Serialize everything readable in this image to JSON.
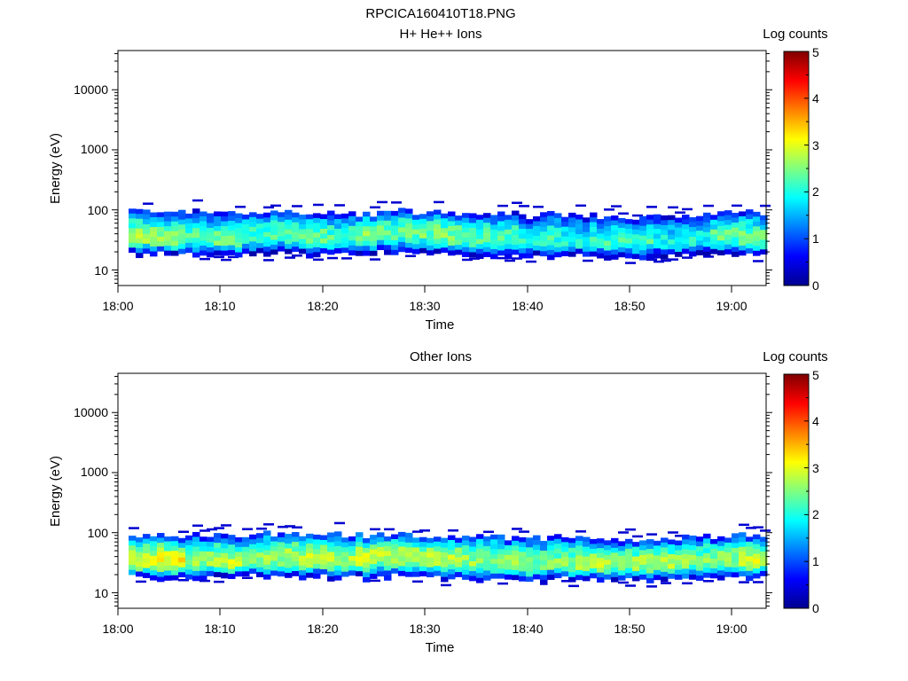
{
  "title": "RPCICA160410T18.PNG",
  "chart_data": [
    {
      "type": "heatmap",
      "title": "H+ He++ Ions",
      "xlabel": "Time",
      "ylabel": "Energy (eV)",
      "x_ticks": [
        "18:00",
        "18:10",
        "18:20",
        "18:30",
        "18:40",
        "18:50",
        "19:00"
      ],
      "x_range": [
        "18:00",
        "19:03"
      ],
      "y_scale": "log",
      "y_ticks": [
        "10",
        "100",
        "1000",
        "10000"
      ],
      "y_range": [
        5.5,
        45000
      ],
      "band": {
        "peak_energy": [
          33,
          30,
          33,
          30,
          36,
          40,
          36,
          33,
          36,
          42,
          40,
          36,
          33,
          33,
          30,
          30,
          28,
          28,
          30,
          30,
          33,
          36,
          33
        ],
        "upper_edge": [
          92,
          90,
          92,
          85,
          95,
          92,
          92,
          90,
          88,
          95,
          92,
          90,
          88,
          85,
          80,
          85,
          80,
          78,
          75,
          80,
          85,
          88,
          90
        ],
        "lower_edge": [
          19,
          20,
          19,
          19,
          20,
          21,
          20,
          20,
          19,
          20,
          21,
          20,
          19,
          19,
          18,
          18,
          18,
          18,
          17,
          18,
          19,
          19,
          19
        ],
        "peak_log_counts": [
          2.6,
          2.5,
          2.2,
          2.4,
          2.2,
          2.3,
          2.4,
          2.2,
          2.5,
          2.3,
          2.4,
          2.5,
          2.3,
          2.2,
          2.0,
          2.1,
          2.0,
          2.1,
          2.2,
          1.9,
          2.0,
          2.3,
          2.4
        ]
      },
      "colorbar": {
        "label": "Log counts",
        "ticks": [
          "0",
          "1",
          "2",
          "3",
          "4",
          "5"
        ],
        "range": [
          0,
          5
        ],
        "colormap": "jet"
      },
      "grid": false
    },
    {
      "type": "heatmap",
      "title": "Other Ions",
      "xlabel": "Time",
      "ylabel": "Energy (eV)",
      "x_ticks": [
        "18:00",
        "18:10",
        "18:20",
        "18:30",
        "18:40",
        "18:50",
        "19:00"
      ],
      "x_range": [
        "18:00",
        "19:03"
      ],
      "y_scale": "log",
      "y_ticks": [
        "10",
        "100",
        "1000",
        "10000"
      ],
      "y_range": [
        5.5,
        45000
      ],
      "band": {
        "peak_energy": [
          32,
          31,
          33,
          30,
          35,
          40,
          36,
          34,
          36,
          40,
          38,
          36,
          33,
          32,
          30,
          30,
          29,
          29,
          30,
          30,
          32,
          35,
          34
        ],
        "upper_edge": [
          90,
          92,
          95,
          90,
          95,
          95,
          92,
          92,
          92,
          95,
          90,
          90,
          88,
          85,
          82,
          85,
          82,
          80,
          80,
          82,
          85,
          88,
          90
        ],
        "lower_edge": [
          19,
          19,
          19,
          20,
          20,
          20,
          19,
          19,
          19,
          20,
          20,
          19,
          18,
          18,
          17,
          18,
          18,
          17,
          17,
          18,
          18,
          18,
          19
        ],
        "peak_log_counts": [
          3.0,
          3.1,
          2.6,
          2.8,
          2.6,
          2.7,
          2.8,
          2.7,
          2.9,
          2.8,
          2.8,
          2.7,
          2.6,
          2.6,
          2.5,
          2.5,
          2.7,
          2.6,
          2.7,
          2.7,
          2.5,
          2.6,
          2.9
        ]
      },
      "colorbar": {
        "label": "Log counts",
        "ticks": [
          "0",
          "1",
          "2",
          "3",
          "4",
          "5"
        ],
        "range": [
          0,
          5
        ],
        "colormap": "jet"
      },
      "grid": false
    }
  ]
}
